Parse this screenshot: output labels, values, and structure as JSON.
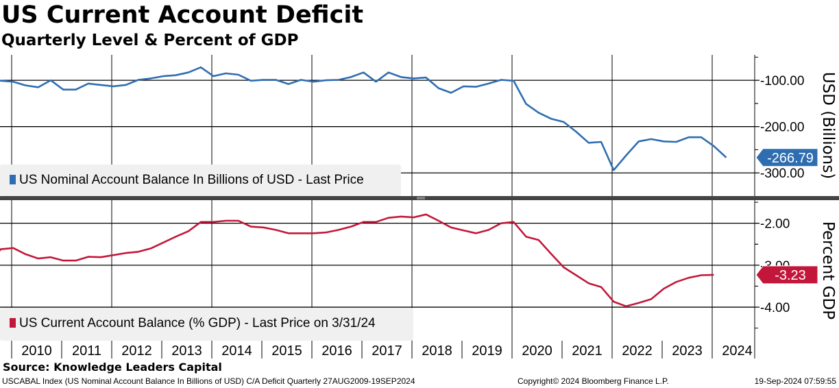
{
  "header": {
    "title": "US Current Account Deficit",
    "subtitle": "Quarterly Level & Percent of GDP"
  },
  "footer": {
    "source": "Source: Knowledge Leaders Capital",
    "ticker_info": "USCABAL Index (US Nominal Account Balance In Billions of USD) C/A Deficit  Quarterly 27AUG2009-19SEP2024",
    "copyright": "Copyright© 2024 Bloomberg Finance L.P.",
    "timestamp": "19-Sep-2024 07:59:55"
  },
  "colors": {
    "blue": "#2e6db0",
    "red": "#c2173a"
  },
  "chart_data": [
    {
      "type": "line",
      "title": "US Nominal Account Balance In Billions of USD - Last Price",
      "ylabel": "USD (Billions)",
      "ylim": [
        -350,
        -45
      ],
      "yticks": [
        -100,
        -200,
        -300
      ],
      "ytick_labels": [
        "-100.00",
        "-200.00",
        "-300.00"
      ],
      "last_value_label": "-266.79",
      "x_start": 2009.75,
      "x_step": 0.25,
      "grid": true,
      "legend_position": "bottom-left",
      "values": [
        -90,
        -101,
        -103,
        -111,
        -115,
        -100,
        -120,
        -120,
        -107,
        -110,
        -113,
        -110,
        -99,
        -96,
        -91,
        -89,
        -83,
        -72,
        -91,
        -85,
        -88,
        -101,
        -99,
        -99,
        -108,
        -99,
        -103,
        -100,
        -99,
        -93,
        -83,
        -103,
        -83,
        -93,
        -96,
        -94,
        -117,
        -127,
        -113,
        -114,
        -107,
        -99,
        -101,
        -151,
        -170,
        -183,
        -190,
        -211,
        -235,
        -233,
        -294,
        -262,
        -232,
        -227,
        -232,
        -233,
        -223,
        -223,
        -242,
        -266.79
      ]
    },
    {
      "type": "line",
      "title": "US Current Account Balance (% GDP) - Last Price on 3/31/24",
      "ylabel": "Percent GDP",
      "ylim": [
        -4.8,
        -1.45
      ],
      "yticks": [
        -2,
        -3,
        -4
      ],
      "ytick_labels": [
        "-2.00",
        "-3.00",
        "-4.00"
      ],
      "last_value_label": "-3.23",
      "x_start": 2009.75,
      "x_step": 0.25,
      "grid": true,
      "legend_position": "bottom-left",
      "values": [
        -3.0,
        -2.62,
        -2.59,
        -2.74,
        -2.84,
        -2.81,
        -2.89,
        -2.89,
        -2.8,
        -2.81,
        -2.76,
        -2.71,
        -2.68,
        -2.6,
        -2.46,
        -2.32,
        -2.19,
        -1.97,
        -1.97,
        -1.94,
        -1.94,
        -2.08,
        -2.1,
        -2.16,
        -2.24,
        -2.24,
        -2.24,
        -2.22,
        -2.16,
        -2.08,
        -1.97,
        -1.97,
        -1.87,
        -1.84,
        -1.86,
        -1.79,
        -1.94,
        -2.1,
        -2.17,
        -2.24,
        -2.16,
        -2.0,
        -1.97,
        -2.32,
        -2.4,
        -2.73,
        -3.05,
        -3.24,
        -3.43,
        -3.52,
        -3.87,
        -3.98,
        -3.9,
        -3.81,
        -3.56,
        -3.4,
        -3.3,
        -3.24,
        -3.23
      ]
    }
  ],
  "x_axis": {
    "years": [
      "2010",
      "2011",
      "2012",
      "2013",
      "2014",
      "2015",
      "2016",
      "2017",
      "2018",
      "2019",
      "2020",
      "2021",
      "2022",
      "2023",
      "2024"
    ],
    "gridline_years": [
      2010,
      2012,
      2014,
      2016,
      2018,
      2020,
      2022,
      2024
    ]
  }
}
